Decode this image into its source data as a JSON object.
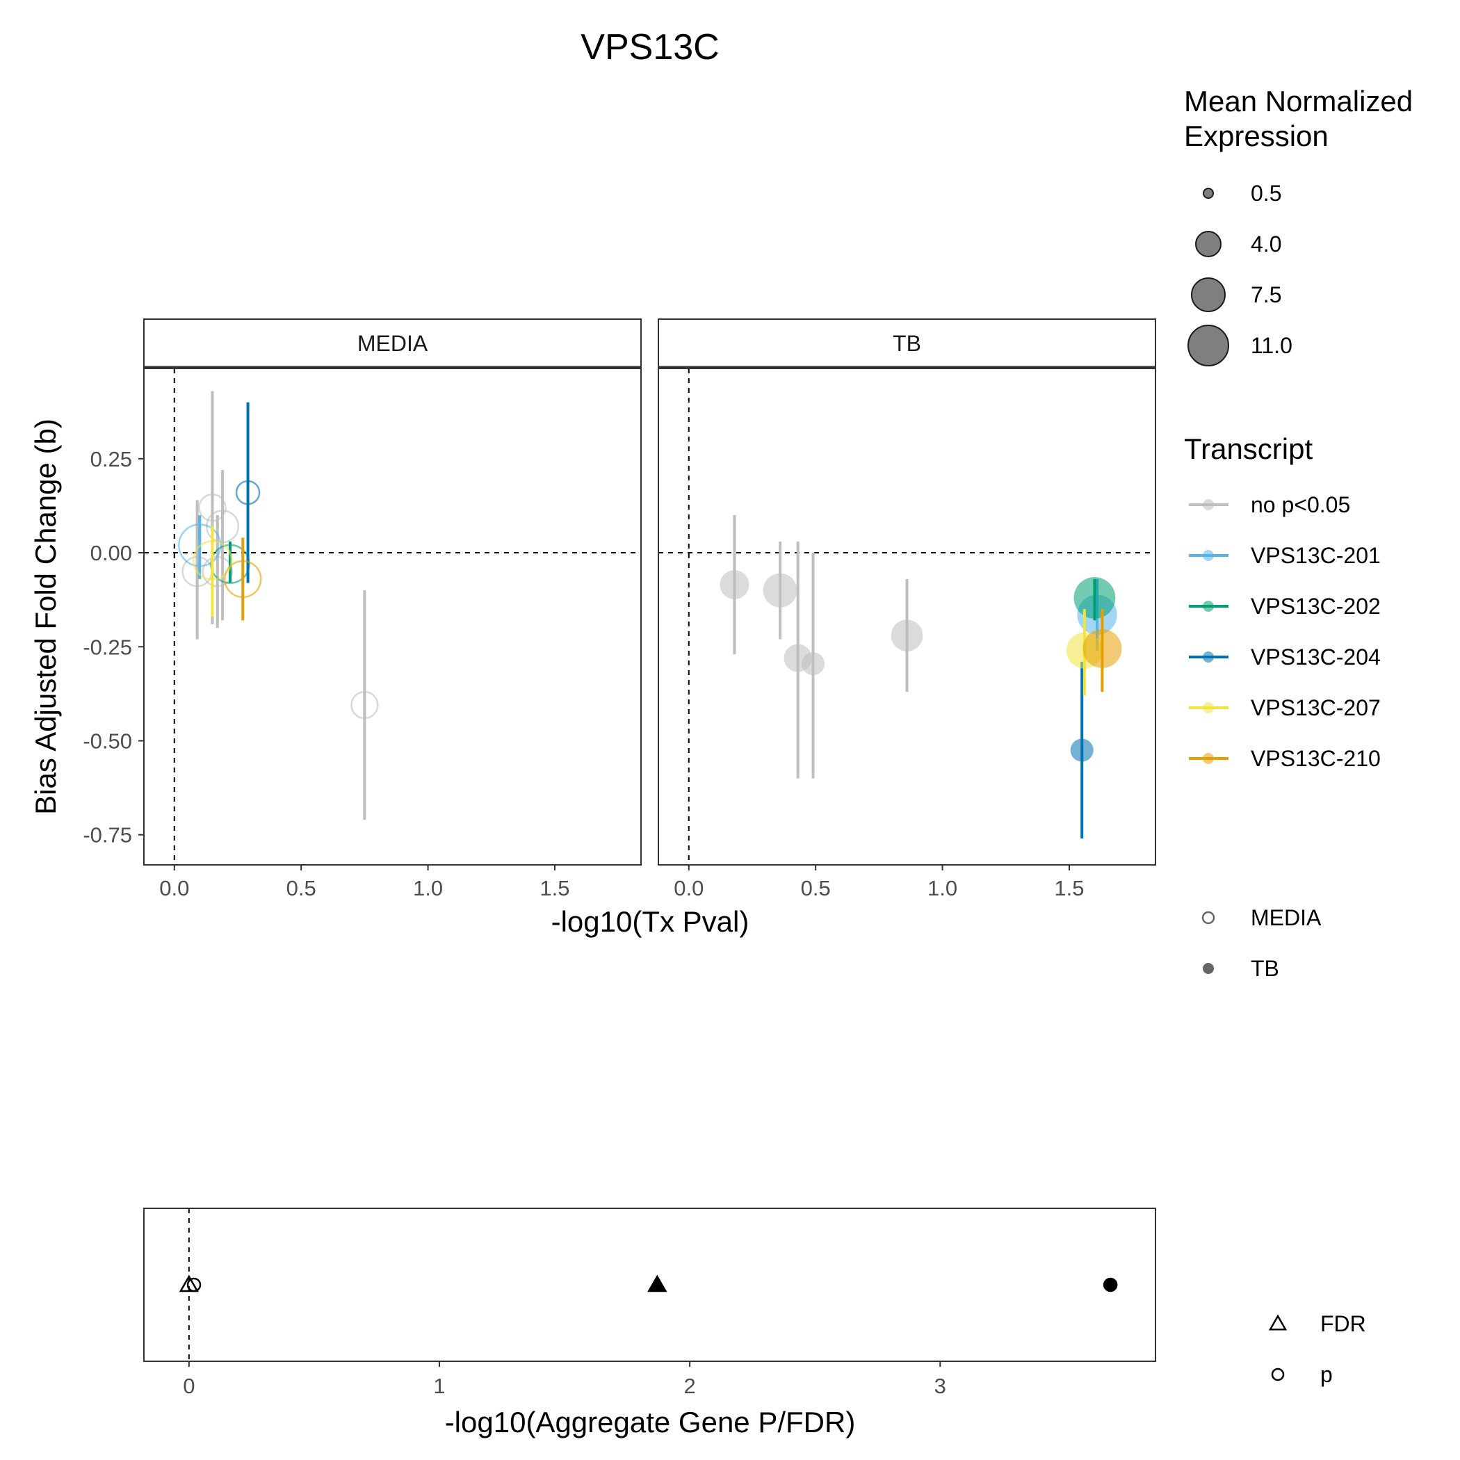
{
  "chart_data": {
    "title": "VPS13C",
    "type": "scatter",
    "colors": {
      "no p<0.05": "#bebebe",
      "VPS13C-201": "#56b4e9",
      "VPS13C-202": "#009e73",
      "VPS13C-204": "#0072b2",
      "VPS13C-207": "#f0e442",
      "VPS13C-210": "#e69f00"
    },
    "top": {
      "xlabel": "-log10(Tx Pval)",
      "ylabel": "Bias Adjusted Fold Change (b)",
      "xlim": [
        -0.12,
        1.84
      ],
      "ylim": [
        -0.83,
        0.49
      ],
      "xticks": [
        "0.0",
        "0.5",
        "1.0",
        "1.5"
      ],
      "xtick_values": [
        0,
        0.5,
        1.0,
        1.5
      ],
      "yticks": [
        "0.25",
        "0.00",
        "-0.25",
        "-0.50",
        "-0.75"
      ],
      "ytick_values": [
        0.25,
        0,
        -0.25,
        -0.5,
        -0.75
      ],
      "panels": [
        {
          "name": "MEDIA",
          "points": [
            {
              "transcript": "no p<0.05",
              "x": 0.15,
              "y": 0.12,
              "lo": -0.19,
              "hi": 0.43,
              "size": 3.0
            },
            {
              "transcript": "no p<0.05",
              "x": 0.19,
              "y": 0.07,
              "lo": -0.18,
              "hi": 0.22,
              "size": 5.0
            },
            {
              "transcript": "no p<0.05",
              "x": 0.09,
              "y": -0.05,
              "lo": -0.23,
              "hi": 0.14,
              "size": 4.0
            },
            {
              "transcript": "no p<0.05",
              "x": 0.17,
              "y": -0.05,
              "lo": -0.2,
              "hi": 0.1,
              "size": 4.0
            },
            {
              "transcript": "no p<0.05",
              "x": 0.75,
              "y": -0.405,
              "lo": -0.71,
              "hi": -0.1,
              "size": 3.0
            },
            {
              "transcript": "VPS13C-201",
              "x": 0.1,
              "y": 0.02,
              "lo": -0.07,
              "hi": 0.1,
              "size": 10.0
            },
            {
              "transcript": "VPS13C-202",
              "x": 0.22,
              "y": -0.03,
              "lo": -0.08,
              "hi": 0.03,
              "size": 8.0
            },
            {
              "transcript": "VPS13C-204",
              "x": 0.29,
              "y": 0.16,
              "lo": -0.08,
              "hi": 0.4,
              "size": 2.0
            },
            {
              "transcript": "VPS13C-207",
              "x": 0.15,
              "y": -0.02,
              "lo": -0.17,
              "hi": 0.07,
              "size": 8.0
            },
            {
              "transcript": "VPS13C-210",
              "x": 0.27,
              "y": -0.07,
              "lo": -0.18,
              "hi": 0.04,
              "size": 7.0
            }
          ]
        },
        {
          "name": "TB",
          "points": [
            {
              "transcript": "no p<0.05",
              "x": 0.18,
              "y": -0.085,
              "lo": -0.27,
              "hi": 0.1,
              "size": 4.0
            },
            {
              "transcript": "no p<0.05",
              "x": 0.36,
              "y": -0.1,
              "lo": -0.23,
              "hi": 0.03,
              "size": 6.0
            },
            {
              "transcript": "no p<0.05",
              "x": 0.43,
              "y": -0.28,
              "lo": -0.6,
              "hi": 0.03,
              "size": 3.5
            },
            {
              "transcript": "no p<0.05",
              "x": 0.49,
              "y": -0.295,
              "lo": -0.6,
              "hi": 0.0,
              "size": 2.0
            },
            {
              "transcript": "no p<0.05",
              "x": 0.86,
              "y": -0.22,
              "lo": -0.37,
              "hi": -0.07,
              "size": 5.0
            },
            {
              "transcript": "VPS13C-201",
              "x": 1.61,
              "y": -0.165,
              "lo": -0.26,
              "hi": -0.07,
              "size": 9.0
            },
            {
              "transcript": "VPS13C-202",
              "x": 1.6,
              "y": -0.12,
              "lo": -0.18,
              "hi": -0.07,
              "size": 10.0
            },
            {
              "transcript": "VPS13C-204",
              "x": 1.55,
              "y": -0.525,
              "lo": -0.76,
              "hi": -0.29,
              "size": 2.0
            },
            {
              "transcript": "VPS13C-207",
              "x": 1.56,
              "y": -0.26,
              "lo": -0.38,
              "hi": -0.15,
              "size": 7.0
            },
            {
              "transcript": "VPS13C-210",
              "x": 1.63,
              "y": -0.255,
              "lo": -0.37,
              "hi": -0.15,
              "size": 8.5
            }
          ]
        }
      ]
    },
    "bottom": {
      "xlabel": "-log10(Aggregate Gene P/FDR)",
      "xlim": [
        -0.18,
        3.86
      ],
      "xticks": [
        "0",
        "1",
        "2",
        "3"
      ],
      "xtick_values": [
        0,
        1,
        2,
        3
      ],
      "points": [
        {
          "x": 0.0,
          "shape": "triangle",
          "condition": "MEDIA"
        },
        {
          "x": 0.02,
          "shape": "circle",
          "condition": "MEDIA"
        },
        {
          "x": 1.87,
          "shape": "triangle",
          "condition": "TB"
        },
        {
          "x": 3.68,
          "shape": "circle",
          "condition": "TB"
        }
      ]
    },
    "legend": {
      "size_title_line1": "Mean Normalized",
      "size_title_line2": "Expression",
      "size_labels": [
        "0.5",
        "4.0",
        "7.5",
        "11.0"
      ],
      "size_values": [
        0.5,
        4.0,
        7.5,
        11.0
      ],
      "transcript_title": "Transcript",
      "transcripts": [
        "no p<0.05",
        "VPS13C-201",
        "VPS13C-202",
        "VPS13C-204",
        "VPS13C-207",
        "VPS13C-210"
      ],
      "conditions": [
        "MEDIA",
        "TB"
      ],
      "stat_types": [
        "FDR",
        "p"
      ]
    }
  }
}
